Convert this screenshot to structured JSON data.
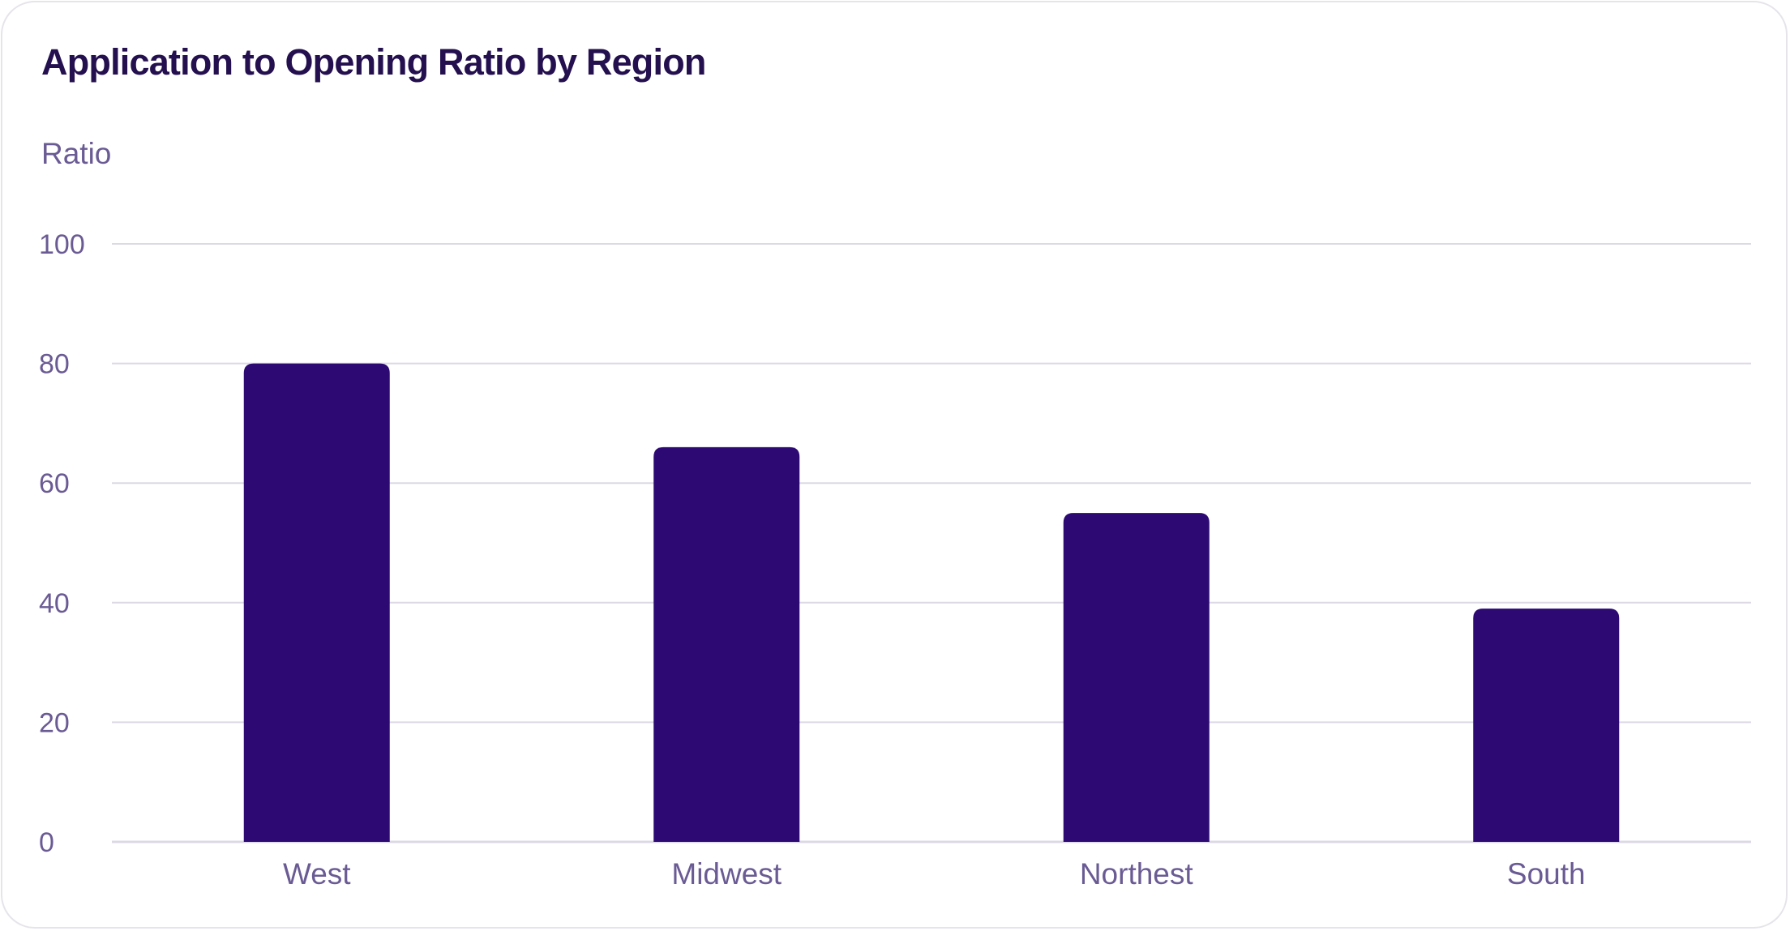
{
  "chart_data": {
    "type": "bar",
    "title": "Application to Opening Ratio by Region",
    "ylabel": "Ratio",
    "xlabel": "",
    "categories": [
      "West",
      "Midwest",
      "Northest",
      "South"
    ],
    "values": [
      80,
      66,
      55,
      39
    ],
    "ylim": [
      0,
      100
    ],
    "yticks": [
      0,
      20,
      40,
      60,
      80,
      100
    ],
    "grid": true,
    "legend": "none"
  },
  "colors": {
    "bar": "#2d0a73",
    "grid": "#dcd9e5",
    "title": "#24104f",
    "label": "#6a5b94"
  }
}
